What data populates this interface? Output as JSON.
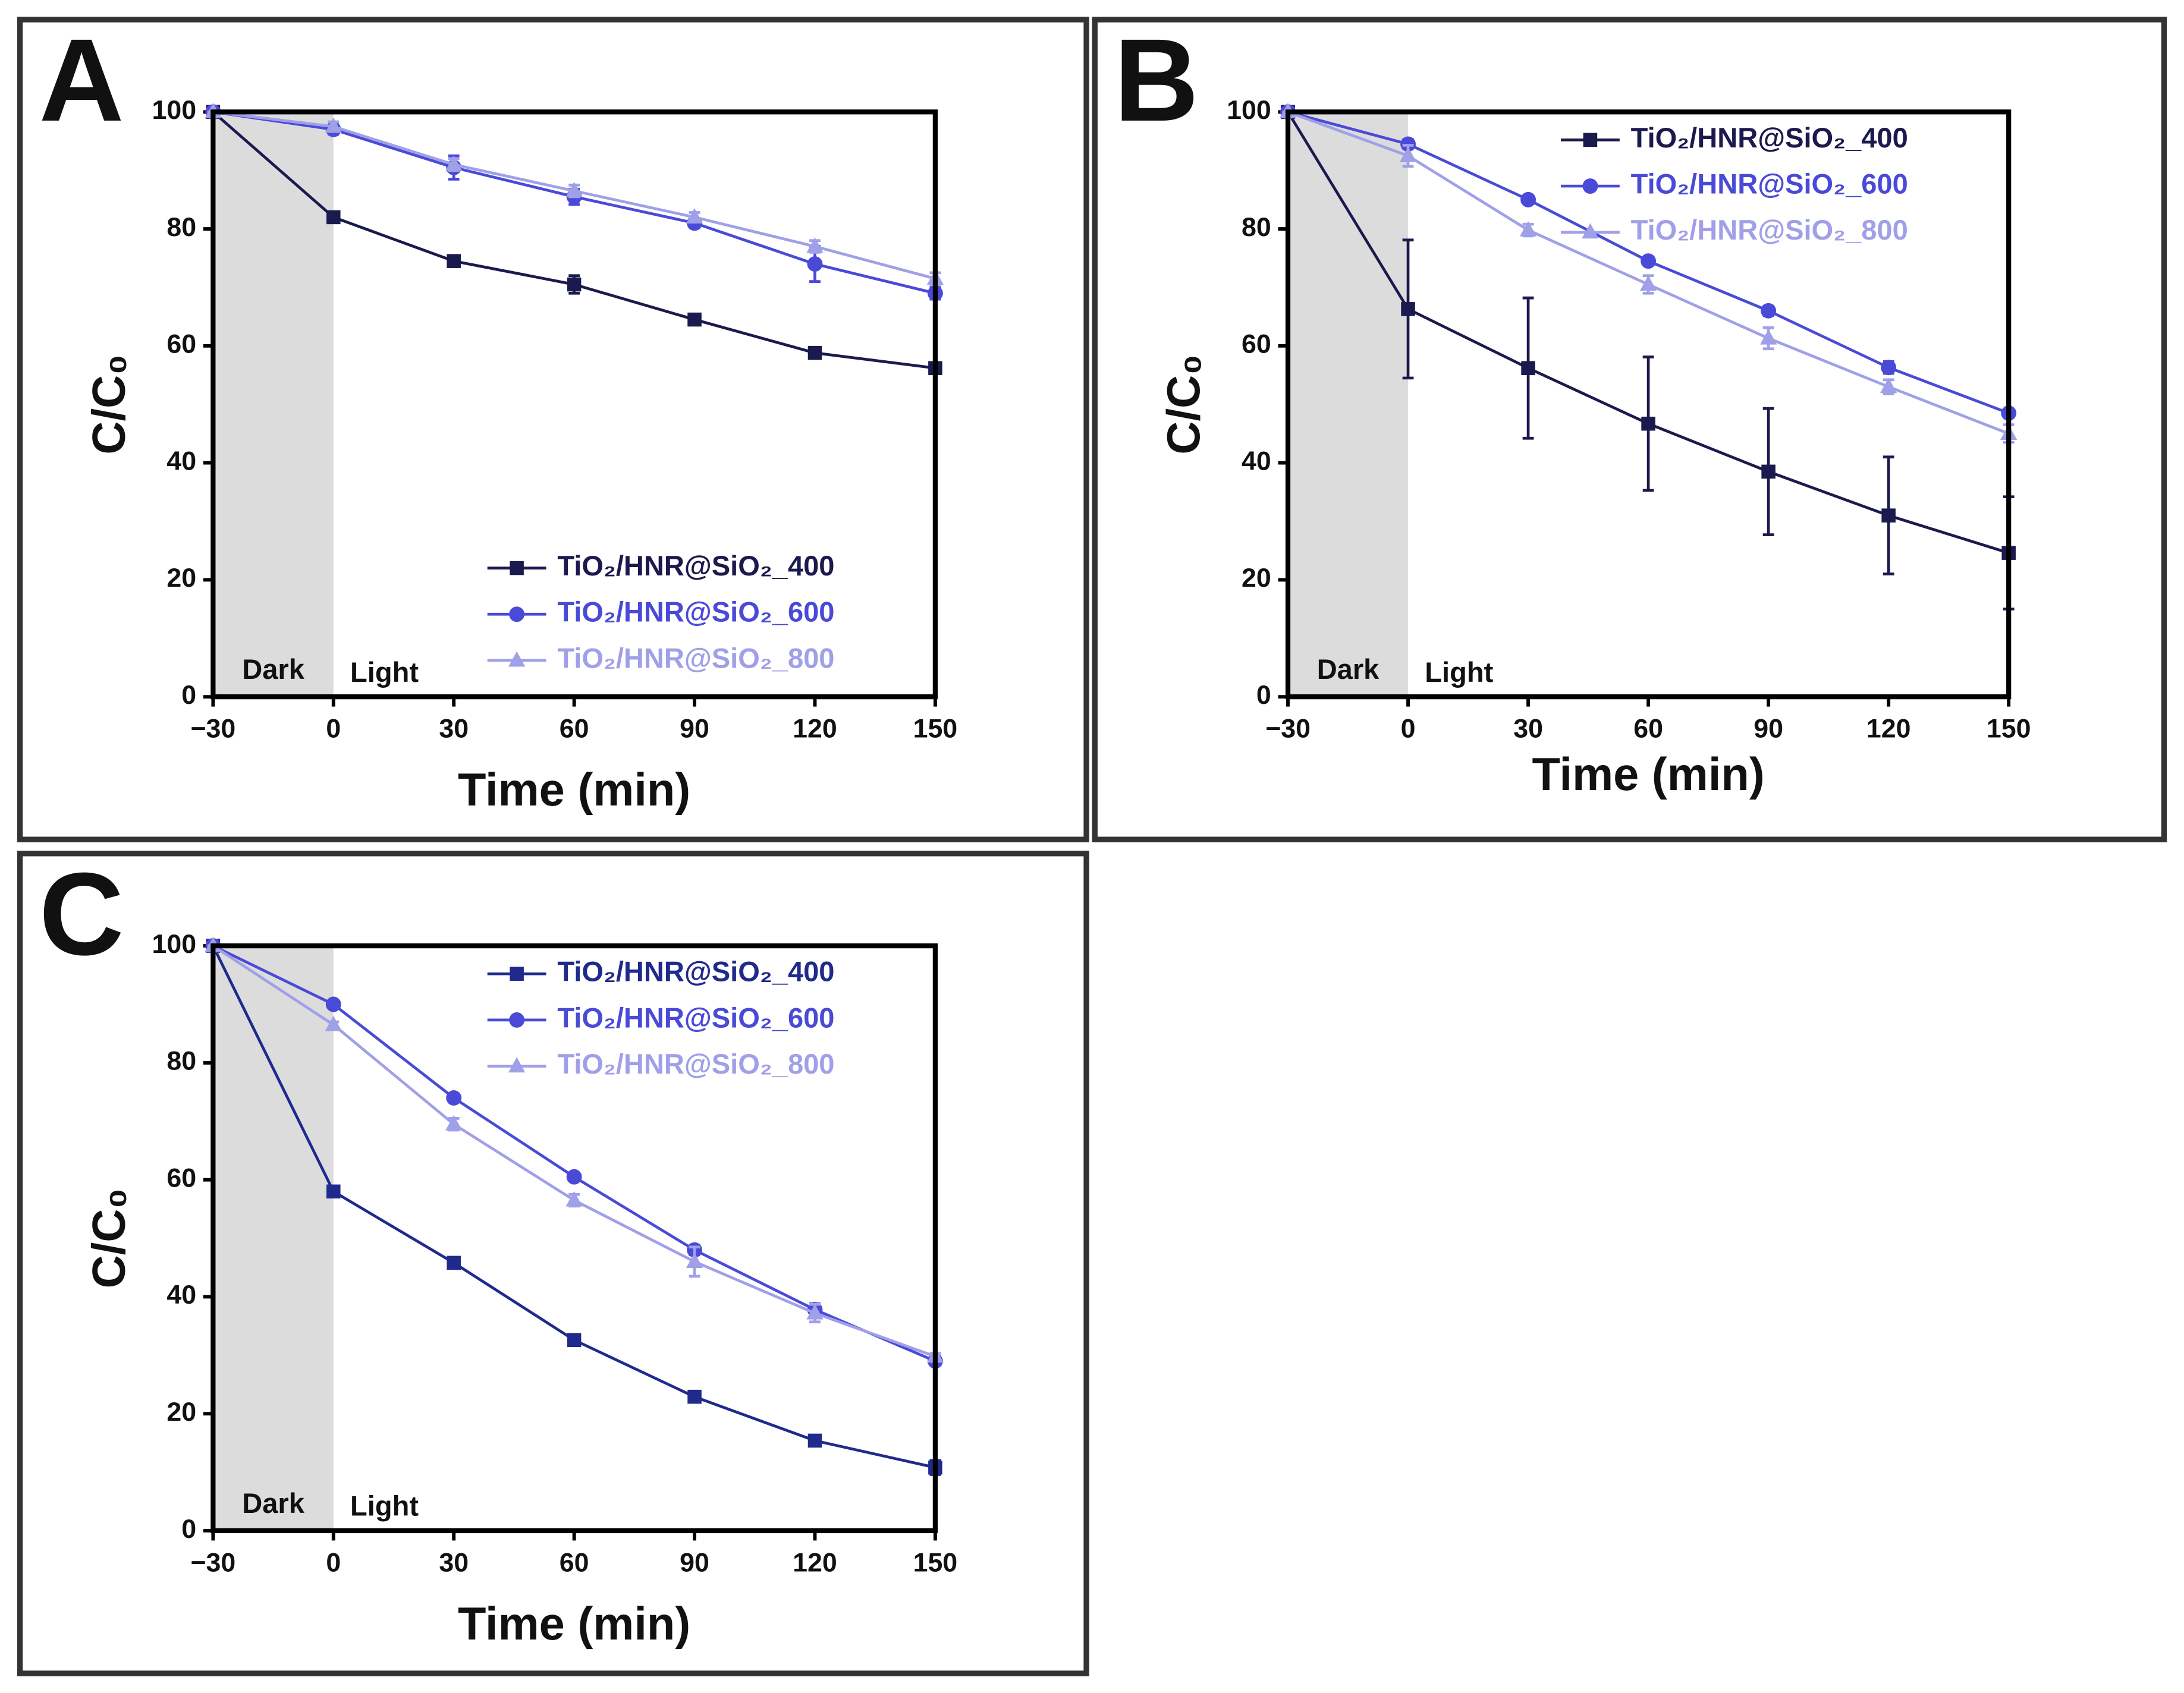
{
  "chart_data": [
    {
      "type": "line",
      "panel": "A",
      "x_label": "Time (min)",
      "y_label": "C/C₀",
      "annotations": [
        "Dark",
        "Light"
      ],
      "legend": "lower right",
      "x": [
        -30,
        0,
        30,
        60,
        90,
        120,
        150
      ],
      "xlim": [
        -30,
        150
      ],
      "xticks": [
        {
          "value": -30,
          "label": "−30"
        },
        0,
        30,
        60,
        90,
        120,
        150
      ],
      "ylim": [
        0,
        100
      ],
      "yticks": [
        0,
        20,
        40,
        60,
        80,
        100
      ],
      "series": [
        {
          "name": "TiO₂/HNR@SiO₂_400",
          "color": "#1a1a4e",
          "values": [
            100,
            82,
            74.5,
            70.5,
            64.5,
            58.8,
            56.2
          ],
          "errors": [
            0,
            0.5,
            0.5,
            1.5,
            0.5,
            0.5,
            0.5
          ]
        },
        {
          "name": "TiO₂/HNR@SiO₂_600",
          "color": "#4a4ad8",
          "values": [
            100,
            97,
            90.5,
            85.5,
            81,
            74,
            69
          ],
          "errors": [
            0,
            0.8,
            2,
            1.3,
            0.8,
            3,
            1
          ]
        },
        {
          "name": "TiO₂/HNR@SiO₂_800",
          "color": "#a0a0e8",
          "values": [
            100,
            97.5,
            91,
            86.5,
            82,
            77,
            71.5
          ],
          "errors": [
            0,
            0.8,
            1,
            1,
            0.8,
            1,
            1
          ]
        }
      ]
    },
    {
      "type": "line",
      "panel": "B",
      "x_label": "Time (min)",
      "y_label": "C/C₀",
      "annotations": [
        "Dark",
        "Light"
      ],
      "legend": "upper right",
      "x": [
        -30,
        0,
        30,
        60,
        90,
        120,
        150
      ],
      "xlim": [
        -30,
        150
      ],
      "xticks": [
        {
          "value": -30,
          "label": "−30"
        },
        0,
        30,
        60,
        90,
        120,
        150
      ],
      "ylim": [
        0,
        100
      ],
      "yticks": [
        0,
        20,
        40,
        60,
        80,
        100
      ],
      "series": [
        {
          "name": "TiO₂/HNR@SiO₂_400",
          "color": "#1a1a4e",
          "values": [
            100,
            66.3,
            56.2,
            46.7,
            38.5,
            31,
            24.6
          ],
          "errors": [
            0,
            11.8,
            12,
            11.4,
            10.8,
            10,
            9.6
          ]
        },
        {
          "name": "TiO₂/HNR@SiO₂_600",
          "color": "#4a4ad8",
          "values": [
            100,
            94.5,
            85,
            74.5,
            66,
            56.3,
            48.5
          ],
          "errors": [
            0,
            0.8,
            0.5,
            0.5,
            0.8,
            1,
            0.5
          ]
        },
        {
          "name": "TiO₂/HNR@SiO₂_800",
          "color": "#a0a0e8",
          "values": [
            100,
            92.5,
            79.8,
            70.5,
            61.3,
            53,
            45
          ],
          "errors": [
            0,
            1.8,
            1,
            1.5,
            1.8,
            1.2,
            1.5
          ]
        }
      ]
    },
    {
      "type": "line",
      "panel": "C",
      "x_label": "Time (min)",
      "y_label": "C/C₀",
      "annotations": [
        "Dark",
        "Light"
      ],
      "legend": "upper right",
      "x": [
        -30,
        0,
        30,
        60,
        90,
        120,
        150
      ],
      "xlim": [
        -30,
        150
      ],
      "xticks": [
        {
          "value": -30,
          "label": "−30"
        },
        0,
        30,
        60,
        90,
        120,
        150
      ],
      "ylim": [
        0,
        100
      ],
      "yticks": [
        0,
        20,
        40,
        60,
        80,
        100
      ],
      "series": [
        {
          "name": "TiO₂/HNR@SiO₂_400",
          "color": "#1f2a8c",
          "values": [
            100,
            58,
            45.8,
            32.6,
            22.9,
            15.4,
            10.8
          ],
          "errors": [
            0,
            0.5,
            0.5,
            0.5,
            0.5,
            0.5,
            1.2
          ]
        },
        {
          "name": "TiO₂/HNR@SiO₂_600",
          "color": "#4a4ad8",
          "values": [
            100,
            90,
            74,
            60.5,
            48,
            37.8,
            29
          ],
          "errors": [
            0,
            0.5,
            0.5,
            0.5,
            0.8,
            1,
            0.5
          ]
        },
        {
          "name": "TiO₂/HNR@SiO₂_800",
          "color": "#a0a0e8",
          "values": [
            100,
            86.5,
            69.5,
            56.5,
            46,
            37.2,
            29.8
          ],
          "errors": [
            0,
            0.5,
            1,
            1,
            2.5,
            1.5,
            0.5
          ]
        }
      ]
    }
  ]
}
